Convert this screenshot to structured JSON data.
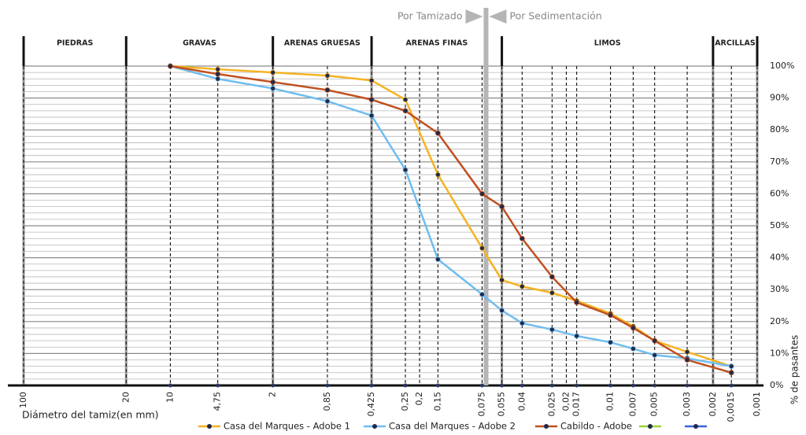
{
  "chart_data": {
    "type": "line",
    "x_scale": "log",
    "x_label": "Diámetro del tamiz(en mm)",
    "y_label": "% de pasantes",
    "annotations": [
      "Por Tamizado",
      "Por Sedimentación"
    ],
    "xlim": [
      100,
      0.001
    ],
    "ylim": [
      0,
      100
    ],
    "xticks": [
      100,
      20,
      10,
      {
        "value": 4.75,
        "label": "4,75"
      },
      2,
      {
        "value": 0.85,
        "label": "0,85"
      },
      {
        "value": 0.425,
        "label": "0,425"
      },
      {
        "value": 0.25,
        "label": "0,25"
      },
      {
        "value": 0.2,
        "label": "0,2"
      },
      {
        "value": 0.15,
        "label": "0,15"
      },
      {
        "value": 0.075,
        "label": "0,075"
      },
      {
        "value": 0.055,
        "label": "0,055"
      },
      {
        "value": 0.04,
        "label": "0,04"
      },
      {
        "value": 0.025,
        "label": "0,025"
      },
      {
        "value": 0.02,
        "label": "0,02"
      },
      {
        "value": 0.017,
        "label": "0,017"
      },
      {
        "value": 0.01,
        "label": "0,01"
      },
      {
        "value": 0.007,
        "label": "0,007"
      },
      {
        "value": 0.005,
        "label": "0,005"
      },
      {
        "value": 0.003,
        "label": "0,003"
      },
      {
        "value": 0.002,
        "label": "0,002"
      },
      {
        "value": 0.0015,
        "label": "0,0015"
      },
      {
        "value": 0.001,
        "label": "0,001"
      }
    ],
    "yticks": [
      {
        "value": 0,
        "label": "0%"
      },
      {
        "value": 10,
        "label": "10%"
      },
      {
        "value": 20,
        "label": "20%"
      },
      {
        "value": 30,
        "label": "30%"
      },
      {
        "value": 40,
        "label": "40%"
      },
      {
        "value": 50,
        "label": "50%"
      },
      {
        "value": 60,
        "label": "60%"
      },
      {
        "value": 70,
        "label": "70%"
      },
      {
        "value": 80,
        "label": "80%"
      },
      {
        "value": 90,
        "label": "90%"
      },
      {
        "value": 100,
        "label": "100%"
      }
    ],
    "zones": [
      {
        "name": "PIEDRAS",
        "from": 100,
        "to": 20
      },
      {
        "name": "GRAVAS",
        "from": 20,
        "to": 2
      },
      {
        "name": "ARENAS GRUESAS",
        "from": 2,
        "to": 0.425
      },
      {
        "name": "ARENAS FINAS",
        "from": 0.425,
        "to": 0.055
      },
      {
        "name": "LIMOS",
        "from": 0.055,
        "to": 0.002
      },
      {
        "name": "ARCILLAS",
        "from": 0.002,
        "to": 0.001
      }
    ],
    "x": [
      10,
      4.75,
      2,
      0.85,
      0.425,
      0.25,
      0.15,
      0.075,
      0.055,
      0.04,
      0.025,
      0.017,
      0.01,
      0.007,
      0.005,
      0.003,
      0.0015
    ],
    "series": [
      {
        "name": "Casa del Marques - Adobe 1",
        "color": "#f5b323",
        "values": [
          100,
          99,
          98,
          97,
          95.5,
          89.5,
          66,
          43,
          33,
          31,
          29,
          26.5,
          22.5,
          18.5,
          14,
          10.5,
          6
        ]
      },
      {
        "name": "Casa del Marques - Adobe 2",
        "color": "#6fbdf0",
        "values": [
          100,
          96,
          93,
          89,
          84.5,
          67.5,
          39.5,
          28.5,
          23.5,
          19.5,
          17.5,
          15.5,
          13.5,
          11.5,
          9.5,
          8.5,
          6
        ]
      },
      {
        "name": "Cabildo - Adobe",
        "color": "#c0501f",
        "values": [
          100,
          97.5,
          95,
          92.5,
          89.5,
          86,
          79,
          60,
          56,
          46,
          34,
          26,
          22,
          18,
          14,
          8,
          4
        ]
      }
    ]
  }
}
